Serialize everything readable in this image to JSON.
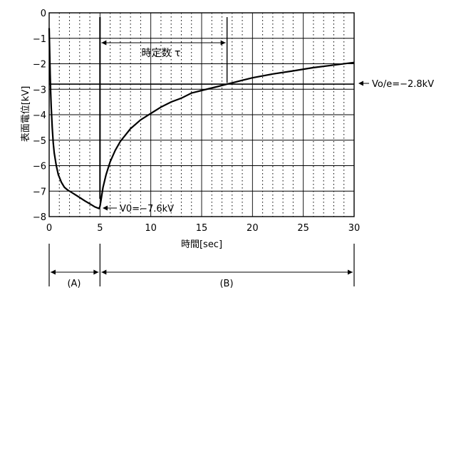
{
  "chart_data": {
    "type": "line",
    "xlabel": "時間[sec]",
    "ylabel": "表面電位[kV]",
    "xlim": [
      0,
      30
    ],
    "ylim": [
      -8,
      0
    ],
    "x_ticks": [
      0,
      5,
      10,
      15,
      20,
      25,
      30
    ],
    "y_ticks": [
      0,
      -1,
      -2,
      -3,
      -4,
      -5,
      -6,
      -7,
      -8
    ],
    "x_tick_labels": [
      "0",
      "5",
      "10",
      "15",
      "20",
      "25",
      "30"
    ],
    "y_tick_labels": [
      "0",
      "−1",
      "−2",
      "−3",
      "−4",
      "−5",
      "−6",
      "−7",
      "−8"
    ],
    "grid": true,
    "series": [
      {
        "x": [
          0,
          0.05,
          0.1,
          0.15,
          0.2,
          0.3,
          0.4,
          0.5,
          0.7,
          0.9,
          1.2,
          1.5,
          1.8,
          2.2,
          2.6,
          3.0,
          3.5,
          4.0,
          4.5,
          4.9,
          5.0,
          5.1,
          5.3,
          5.6,
          6.0,
          6.5,
          7.0,
          8.0,
          9.0,
          10.0,
          11.0,
          12.0,
          13.0,
          14.0,
          15.0,
          16.0,
          17.0,
          17.5,
          18.0,
          19.0,
          20.0,
          22.0,
          24.0,
          26.0,
          28.0,
          30.0
        ],
        "values": [
          -0.6,
          -1.5,
          -2.4,
          -3.1,
          -3.7,
          -4.5,
          -5.1,
          -5.5,
          -6.0,
          -6.35,
          -6.65,
          -6.85,
          -6.95,
          -7.05,
          -7.15,
          -7.25,
          -7.38,
          -7.5,
          -7.62,
          -7.68,
          -7.6,
          -7.35,
          -6.85,
          -6.35,
          -5.85,
          -5.4,
          -5.05,
          -4.55,
          -4.2,
          -3.95,
          -3.7,
          -3.5,
          -3.35,
          -3.15,
          -3.05,
          -2.95,
          -2.85,
          -2.8,
          -2.75,
          -2.65,
          -2.55,
          -2.4,
          -2.28,
          -2.15,
          -2.05,
          -1.95
        ]
      }
    ],
    "vertical_markers": [
      5,
      17.5
    ],
    "horizontal_reference": -2.8,
    "annotations": {
      "time_constant": "時定数 τ",
      "v0": "V0=−7.6kV",
      "vo_e": "Vo/e=−2.8kV",
      "segment_a": "(A)",
      "segment_b": "(B)"
    }
  }
}
